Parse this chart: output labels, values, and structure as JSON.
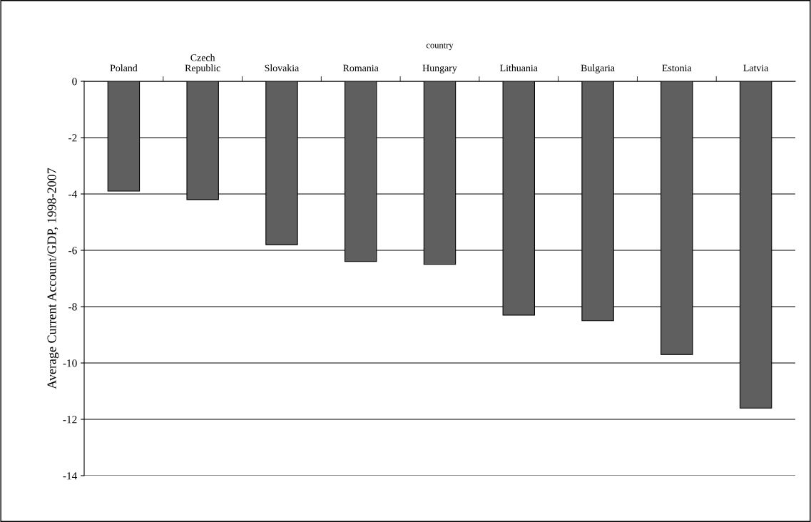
{
  "chart_data": {
    "type": "bar",
    "xlabel": "country",
    "ylabel": "Average Current Account/GDP, 1998-2007",
    "categories": [
      "Poland",
      "Czech\nRepublic",
      "Slovakia",
      "Romania",
      "Hungary",
      "Lithuania",
      "Bulgaria",
      "Estonia",
      "Latvia"
    ],
    "values": [
      -3.9,
      -4.2,
      -5.8,
      -6.4,
      -6.5,
      -8.3,
      -8.5,
      -9.7,
      -11.6
    ],
    "color": "#5f5f5f",
    "ylim": [
      -14,
      0
    ],
    "yticks": [
      -14,
      -12,
      -10,
      -8,
      -6,
      -4,
      -2,
      0
    ],
    "grid": "y"
  }
}
